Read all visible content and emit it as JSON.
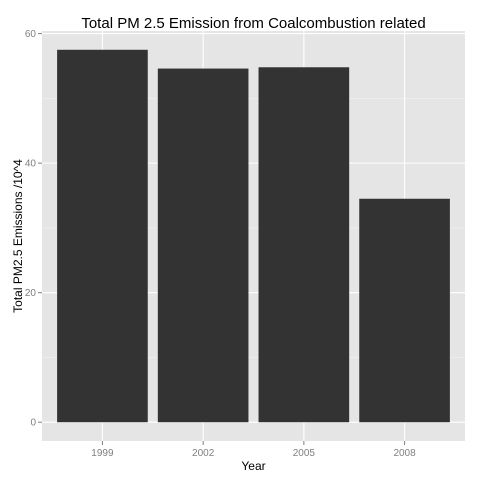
{
  "chart_data": {
    "type": "bar",
    "title": "Total PM 2.5 Emission from Coalcombustion related",
    "xlabel": "Year",
    "ylabel": "Total PM2.5 Emissions /10^4",
    "categories": [
      "1999",
      "2002",
      "2005",
      "2008"
    ],
    "values": [
      57.5,
      54.6,
      54.8,
      34.5
    ],
    "ylim": [
      -2.9,
      60.4
    ],
    "yticks": [
      0,
      20,
      40,
      60
    ],
    "grid": true,
    "colors": {
      "bar": "#333333",
      "panel": "#e5e5e5",
      "grid_major": "#ffffff",
      "grid_minor": "#f2f2f2",
      "tick_text": "#7f7f7f"
    }
  }
}
